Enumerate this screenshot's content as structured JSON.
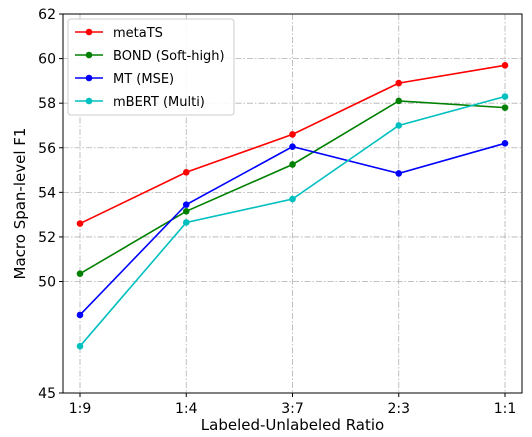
{
  "chart_data": {
    "type": "line",
    "title": "",
    "xlabel": "Labeled-Unlabeled Ratio",
    "ylabel": "Macro Span-level F1",
    "categories": [
      "1:9",
      "1:4",
      "3:7",
      "2:3",
      "1:1"
    ],
    "y_ticks": [
      45,
      50,
      52,
      54,
      56,
      58,
      60,
      62
    ],
    "ylim": [
      45,
      62
    ],
    "grid": true,
    "legend_position": "top-left",
    "series": [
      {
        "name": "metaTS",
        "color": "#ff0000",
        "values": [
          52.6,
          54.9,
          56.6,
          58.9,
          59.7
        ]
      },
      {
        "name": "BOND (Soft-high)",
        "color": "#008000",
        "values": [
          50.35,
          53.15,
          55.25,
          58.1,
          57.8
        ]
      },
      {
        "name": "MT (MSE)",
        "color": "#0000ff",
        "values": [
          48.5,
          53.45,
          56.05,
          54.85,
          56.2
        ]
      },
      {
        "name": "mBERT (Multi)",
        "color": "#00bfbf",
        "values": [
          47.1,
          52.65,
          53.7,
          57.0,
          58.3
        ]
      }
    ]
  }
}
